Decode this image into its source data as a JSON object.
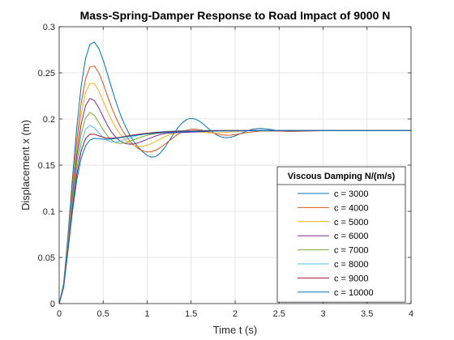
{
  "chart_data": {
    "type": "line",
    "title": "Mass-Spring-Damper Response to Road Impact of 9000 N",
    "xlabel": "Time t (s)",
    "ylabel": "Displacement x (m)",
    "xlim": [
      0,
      4
    ],
    "ylim": [
      0,
      0.3
    ],
    "xticks": [
      "0",
      "0.5",
      "1",
      "1.5",
      "2",
      "2.5",
      "3",
      "3.5",
      "4"
    ],
    "yticks": [
      "0",
      "0.05",
      "0.1",
      "0.15",
      "0.2",
      "0.25",
      "0.3"
    ],
    "grid": true,
    "legend": {
      "title": "Viscous Damping N/(m/s)",
      "location": "bottom-right"
    },
    "x": [
      0,
      0.05,
      0.1,
      0.15,
      0.2,
      0.25,
      0.3,
      0.35,
      0.4,
      0.45,
      0.5,
      0.55,
      0.6,
      0.65,
      0.7,
      0.75,
      0.8,
      0.85,
      0.9,
      0.95,
      1.0,
      1.05,
      1.1,
      1.15,
      1.2,
      1.25,
      1.3,
      1.35,
      1.4,
      1.45,
      1.5,
      1.55,
      1.6,
      1.65,
      1.7,
      1.75,
      1.8,
      1.85,
      1.9,
      1.95,
      2.0,
      2.05,
      2.1,
      2.15,
      2.2,
      2.25,
      2.3,
      2.35,
      2.4,
      2.45,
      2.5,
      2.55,
      2.6,
      2.65,
      2.7,
      2.75,
      2.8,
      2.85,
      2.9,
      2.95,
      3.0,
      3.05,
      3.1,
      3.15,
      3.2,
      3.25,
      3.3,
      3.35,
      3.4,
      3.45,
      3.5,
      3.55,
      3.6,
      3.65,
      3.7,
      3.75,
      3.8,
      3.85,
      3.9,
      3.95,
      4.0
    ],
    "series": [
      {
        "name": "c = 3000",
        "color": "#0072BD",
        "values": [
          0.0,
          0.0214,
          0.0741,
          0.1347,
          0.1911,
          0.2358,
          0.2658,
          0.2809,
          0.2834,
          0.2765,
          0.2638,
          0.2483,
          0.2323,
          0.2172,
          0.2039,
          0.1925,
          0.183,
          0.1754,
          0.1693,
          0.1645,
          0.1606,
          0.1585,
          0.1594,
          0.1632,
          0.1691,
          0.1763,
          0.1838,
          0.1906,
          0.196,
          0.1995,
          0.2007,
          0.1999,
          0.1973,
          0.1935,
          0.1893,
          0.1854,
          0.1822,
          0.1803,
          0.1797,
          0.1803,
          0.1817,
          0.1837,
          0.1857,
          0.1876,
          0.1889,
          0.1896,
          0.1897,
          0.1893,
          0.1887,
          0.1879,
          0.1873,
          0.1868,
          0.1866,
          0.1866,
          0.1868,
          0.1871,
          0.1873,
          0.1875,
          0.1876,
          0.1876,
          0.1875,
          0.1875,
          0.1874,
          0.1874,
          0.1874,
          0.1874,
          0.1875,
          0.1875,
          0.1875,
          0.1875,
          0.1875,
          0.1875,
          0.1875,
          0.1875,
          0.1875,
          0.1875,
          0.1875,
          0.1875,
          0.1875,
          0.1875,
          0.1875
        ]
      },
      {
        "name": "c = 4000",
        "color": "#D95319",
        "values": [
          0.0,
          0.02,
          0.0689,
          0.1248,
          0.1765,
          0.217,
          0.2436,
          0.2563,
          0.2574,
          0.2502,
          0.2383,
          0.2247,
          0.2117,
          0.2003,
          0.1908,
          0.183,
          0.1766,
          0.1716,
          0.1679,
          0.1655,
          0.1643,
          0.1646,
          0.1662,
          0.169,
          0.1725,
          0.1763,
          0.1801,
          0.1835,
          0.1862,
          0.188,
          0.1889,
          0.189,
          0.1884,
          0.1873,
          0.1859,
          0.1846,
          0.1835,
          0.1828,
          0.1825,
          0.1826,
          0.1831,
          0.1839,
          0.1847,
          0.1855,
          0.1861,
          0.1866,
          0.1869,
          0.187,
          0.187,
          0.1869,
          0.1868,
          0.1867,
          0.1866,
          0.1866,
          0.1866,
          0.1867,
          0.1868,
          0.187,
          0.1871,
          0.1872,
          0.1873,
          0.1874,
          0.1874,
          0.1874,
          0.1874,
          0.1874,
          0.1875,
          0.1875,
          0.1875,
          0.1875,
          0.1875,
          0.1875,
          0.1875,
          0.1875,
          0.1875,
          0.1875,
          0.1875,
          0.1875,
          0.1875,
          0.1875,
          0.1875
        ]
      },
      {
        "name": "c = 5000",
        "color": "#EDB120",
        "values": [
          0.0,
          0.0195,
          0.0665,
          0.1197,
          0.1682,
          0.2053,
          0.2287,
          0.2388,
          0.2382,
          0.2305,
          0.2196,
          0.2082,
          0.198,
          0.1894,
          0.1827,
          0.1776,
          0.1739,
          0.1714,
          0.1703,
          0.1704,
          0.1715,
          0.1734,
          0.1758,
          0.1783,
          0.1807,
          0.1828,
          0.1845,
          0.1857,
          0.1864,
          0.1866,
          0.1865,
          0.1862,
          0.1858,
          0.1854,
          0.1851,
          0.185,
          0.185,
          0.1852,
          0.1855,
          0.1859,
          0.1863,
          0.1867,
          0.187,
          0.1873,
          0.1875,
          0.1876,
          0.1876,
          0.1876,
          0.1876,
          0.1875,
          0.1875,
          0.1875,
          0.1875,
          0.1875,
          0.1875,
          0.1875,
          0.1875,
          0.1875,
          0.1875,
          0.1875,
          0.1875,
          0.1875,
          0.1875,
          0.1875,
          0.1875,
          0.1875,
          0.1875,
          0.1875,
          0.1875,
          0.1875,
          0.1875,
          0.1875,
          0.1875,
          0.1875,
          0.1875,
          0.1875,
          0.1875,
          0.1875,
          0.1875,
          0.1875,
          0.1875
        ]
      },
      {
        "name": "c = 6000",
        "color": "#7E2F8E",
        "values": [
          0.0,
          0.019,
          0.0643,
          0.115,
          0.1604,
          0.1942,
          0.2145,
          0.2222,
          0.22,
          0.2121,
          0.2023,
          0.1929,
          0.1852,
          0.1795,
          0.1757,
          0.1735,
          0.1727,
          0.173,
          0.1742,
          0.176,
          0.178,
          0.18,
          0.1817,
          0.1831,
          0.1841,
          0.1847,
          0.1851,
          0.1853,
          0.1854,
          0.1855,
          0.1857,
          0.1859,
          0.1862,
          0.1864,
          0.1867,
          0.1869,
          0.1871,
          0.1873,
          0.1874,
          0.1875,
          0.1875,
          0.1875,
          0.1875,
          0.1875,
          0.1875,
          0.1875,
          0.1875,
          0.1875,
          0.1875,
          0.1875,
          0.1875,
          0.1875,
          0.1875,
          0.1875,
          0.1875,
          0.1875,
          0.1875,
          0.1875,
          0.1875,
          0.1875,
          0.1875,
          0.1875,
          0.1875,
          0.1875,
          0.1875,
          0.1875,
          0.1875,
          0.1875,
          0.1875,
          0.1875,
          0.1875,
          0.1875,
          0.1875,
          0.1875,
          0.1875,
          0.1875,
          0.1875,
          0.1875,
          0.1875,
          0.1875,
          0.1875
        ]
      },
      {
        "name": "c = 7000",
        "color": "#77AC30",
        "values": [
          0.0,
          0.0185,
          0.0623,
          0.1105,
          0.1529,
          0.1836,
          0.2013,
          0.207,
          0.2039,
          0.1964,
          0.1883,
          0.1815,
          0.1768,
          0.1742,
          0.1735,
          0.1742,
          0.1757,
          0.1775,
          0.1793,
          0.1809,
          0.1822,
          0.1833,
          0.1842,
          0.1849,
          0.1855,
          0.186,
          0.1864,
          0.1867,
          0.1869,
          0.1871,
          0.1872,
          0.1873,
          0.1874,
          0.1874,
          0.1875,
          0.1875,
          0.1875,
          0.1875,
          0.1875,
          0.1875,
          0.1875,
          0.1875,
          0.1875,
          0.1875,
          0.1875,
          0.1875,
          0.1875,
          0.1875,
          0.1875,
          0.1875,
          0.1875,
          0.1875,
          0.1875,
          0.1875,
          0.1875,
          0.1875,
          0.1875,
          0.1875,
          0.1875,
          0.1875,
          0.1875,
          0.1875,
          0.1875,
          0.1875,
          0.1875,
          0.1875,
          0.1875,
          0.1875,
          0.1875,
          0.1875,
          0.1875,
          0.1875,
          0.1875,
          0.1875,
          0.1875,
          0.1875,
          0.1875,
          0.1875,
          0.1875,
          0.1875,
          0.1875
        ]
      },
      {
        "name": "c = 8000",
        "color": "#4DBEEE",
        "values": [
          0.0,
          0.018,
          0.0604,
          0.1064,
          0.146,
          0.1738,
          0.189,
          0.193,
          0.1903,
          0.1851,
          0.1801,
          0.1766,
          0.1751,
          0.1752,
          0.1763,
          0.1779,
          0.1796,
          0.1811,
          0.1824,
          0.1835,
          0.1844,
          0.1851,
          0.1857,
          0.1861,
          0.1865,
          0.1868,
          0.187,
          0.1872,
          0.1873,
          0.1874,
          0.1874,
          0.1875,
          0.1875,
          0.1875,
          0.1875,
          0.1875,
          0.1875,
          0.1875,
          0.1875,
          0.1875,
          0.1875,
          0.1875,
          0.1875,
          0.1875,
          0.1875,
          0.1875,
          0.1875,
          0.1875,
          0.1875,
          0.1875,
          0.1875,
          0.1875,
          0.1875,
          0.1875,
          0.1875,
          0.1875,
          0.1875,
          0.1875,
          0.1875,
          0.1875,
          0.1875,
          0.1875,
          0.1875,
          0.1875,
          0.1875,
          0.1875,
          0.1875,
          0.1875,
          0.1875,
          0.1875,
          0.1875,
          0.1875,
          0.1875,
          0.1875,
          0.1875,
          0.1875,
          0.1875,
          0.1875,
          0.1875,
          0.1875,
          0.1875
        ]
      },
      {
        "name": "c = 9000",
        "color": "#A2142F",
        "values": [
          0.0,
          0.0176,
          0.0587,
          0.1026,
          0.1398,
          0.1654,
          0.179,
          0.1835,
          0.1834,
          0.1818,
          0.1802,
          0.1793,
          0.1792,
          0.1796,
          0.1803,
          0.1811,
          0.182,
          0.1828,
          0.1835,
          0.1841,
          0.1846,
          0.185,
          0.1854,
          0.1857,
          0.186,
          0.1862,
          0.1865,
          0.1867,
          0.1868,
          0.1869,
          0.187,
          0.1871,
          0.1872,
          0.1873,
          0.1873,
          0.1874,
          0.1874,
          0.1874,
          0.1875,
          0.1875,
          0.1875,
          0.1875,
          0.1875,
          0.1875,
          0.1875,
          0.1875,
          0.1875,
          0.1875,
          0.1875,
          0.1875,
          0.1875,
          0.1875,
          0.1875,
          0.1875,
          0.1875,
          0.1875,
          0.1875,
          0.1875,
          0.1875,
          0.1875,
          0.1875,
          0.1875,
          0.1875,
          0.1875,
          0.1875,
          0.1875,
          0.1875,
          0.1875,
          0.1875,
          0.1875,
          0.1875,
          0.1875,
          0.1875,
          0.1875,
          0.1875,
          0.1875,
          0.1875,
          0.1875,
          0.1875,
          0.1875,
          0.1875
        ]
      },
      {
        "name": "c = 10000",
        "color": "#0072BD",
        "values": [
          0.0,
          0.0172,
          0.057,
          0.099,
          0.134,
          0.1575,
          0.171,
          0.1773,
          0.179,
          0.1787,
          0.1781,
          0.178,
          0.1784,
          0.1791,
          0.1799,
          0.1807,
          0.1814,
          0.1821,
          0.1827,
          0.1833,
          0.1838,
          0.1842,
          0.1846,
          0.1849,
          0.1852,
          0.1855,
          0.1857,
          0.1859,
          0.1861,
          0.1863,
          0.1864,
          0.1865,
          0.1866,
          0.1867,
          0.1868,
          0.1869,
          0.187,
          0.187,
          0.1871,
          0.1871,
          0.1872,
          0.1872,
          0.1872,
          0.1873,
          0.1873,
          0.1873,
          0.1873,
          0.1874,
          0.1874,
          0.1874,
          0.1874,
          0.1874,
          0.1874,
          0.1874,
          0.1874,
          0.1874,
          0.1874,
          0.1875,
          0.1875,
          0.1875,
          0.1875,
          0.1875,
          0.1875,
          0.1875,
          0.1875,
          0.1875,
          0.1875,
          0.1875,
          0.1875,
          0.1875,
          0.1875,
          0.1875,
          0.1875,
          0.1875,
          0.1875,
          0.1875,
          0.1875,
          0.1875,
          0.1875,
          0.1875,
          0.1875
        ]
      }
    ]
  }
}
